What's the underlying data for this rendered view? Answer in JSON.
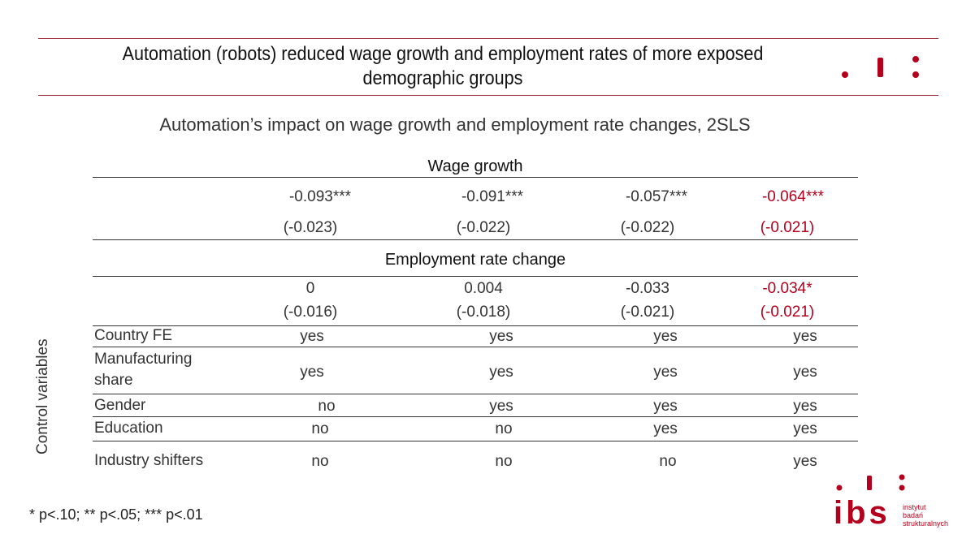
{
  "header": {
    "title_line1": "Automation (robots) reduced wage growth and employment rates of more exposed",
    "title_line2": "demographic groups"
  },
  "subtitle": "Automation’s impact on wage growth and employment rate changes, 2SLS",
  "table": {
    "wage_growth": {
      "label": "Wage growth",
      "coefficients": [
        "-0.093***",
        "-0.091***",
        "-0.057***",
        "-0.064***"
      ],
      "std_errors": [
        "(-0.023)",
        "(-0.022)",
        "(-0.022)",
        "(-0.021)"
      ]
    },
    "employment": {
      "label": "Employment rate change",
      "coefficients": [
        "0",
        "0.004",
        "-0.033",
        "-0.034*"
      ],
      "std_errors": [
        "(-0.016)",
        "(-0.018)",
        "(-0.021)",
        "(-0.021)"
      ]
    },
    "controls_label": "Control variables",
    "controls": [
      {
        "label": "Country FE",
        "values": [
          "yes",
          "yes",
          "yes",
          "yes"
        ]
      },
      {
        "label": "Manufacturing share",
        "label_line1": "Manufacturing",
        "label_line2": "share",
        "values": [
          "yes",
          "yes",
          "yes",
          "yes"
        ]
      },
      {
        "label": "Gender",
        "values": [
          "no",
          "yes",
          "yes",
          "yes"
        ]
      },
      {
        "label": "Education",
        "values": [
          "no",
          "no",
          "yes",
          "yes"
        ]
      },
      {
        "label": "Industry shifters",
        "values": [
          "no",
          "no",
          "no",
          "yes"
        ]
      }
    ]
  },
  "footnote": "* p<.10; ** p<.05; *** p<.01",
  "logo": {
    "text_line1": "instytut",
    "text_line2": "badań",
    "text_line3": "strukturalnych",
    "letters": "ibs"
  },
  "colors": {
    "accent": "#b2001d",
    "rule": "#9b2a3a"
  }
}
